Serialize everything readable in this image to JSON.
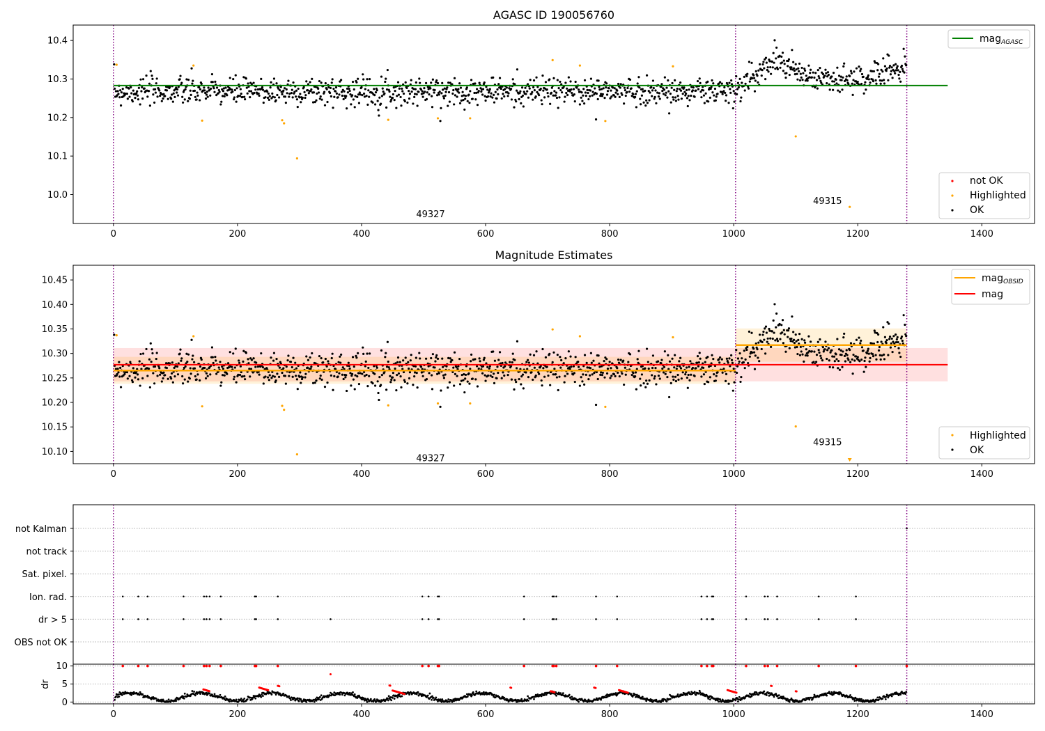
{
  "chart_data": [
    {
      "type": "scatter",
      "panel": "magnitudes",
      "title": "AGASC ID 190056760",
      "xlim": [
        -65,
        1485
      ],
      "ylim": [
        9.925,
        10.44
      ],
      "xticks": [
        0,
        200,
        400,
        600,
        800,
        1000,
        1200,
        1400
      ],
      "xtick_labels": [
        "0",
        "200",
        "400",
        "600",
        "800",
        "1000",
        "1200",
        "1400"
      ],
      "yticks": [
        10.0,
        10.1,
        10.2,
        10.3,
        10.4
      ],
      "ytick_labels": [
        "10.0",
        "10.1",
        "10.2",
        "10.3",
        "10.4"
      ],
      "vlines": [
        0,
        1003,
        1279
      ],
      "obsid_labels": [
        {
          "x": 500,
          "y": 9.95,
          "text": "49327"
        },
        {
          "x": 1140,
          "y": 9.985,
          "text": "49315"
        }
      ],
      "agasc_line": {
        "y": 10.283,
        "x": [
          0,
          1345
        ],
        "label": "mag",
        "label_sub": "AGASC"
      },
      "highlighted": [
        [
          5,
          10.337
        ],
        [
          129,
          10.335
        ],
        [
          143,
          10.192
        ],
        [
          272,
          10.193
        ],
        [
          275,
          10.185
        ],
        [
          296,
          10.094
        ],
        [
          443,
          10.194
        ],
        [
          523,
          10.198
        ],
        [
          575,
          10.198
        ],
        [
          708,
          10.349
        ],
        [
          752,
          10.335
        ],
        [
          793,
          10.191
        ],
        [
          902,
          10.333
        ],
        [
          1100,
          10.151
        ],
        [
          1187,
          9.968
        ]
      ],
      "segments": [
        {
          "x0": 0,
          "x1": 1003,
          "mean": 10.268,
          "std": 0.024,
          "seed": 7
        },
        {
          "x0": 1003,
          "x1": 1279,
          "mean": 10.315,
          "std": 0.032,
          "seed": 11
        }
      ],
      "legend_top": [
        {
          "label": "mag",
          "sub": "AGASC",
          "color": "#008000"
        }
      ],
      "legend_bottom": [
        {
          "label": "not OK",
          "color": "#ff0000"
        },
        {
          "label": "Highlighted",
          "color": "#ffa500"
        },
        {
          "label": "OK",
          "color": "#000000"
        }
      ]
    },
    {
      "type": "scatter",
      "panel": "estimates",
      "title": "Magnitude Estimates",
      "xlim": [
        -65,
        1485
      ],
      "ylim": [
        10.075,
        10.48
      ],
      "xticks": [
        0,
        200,
        400,
        600,
        800,
        1000,
        1200,
        1400
      ],
      "xtick_labels": [
        "0",
        "200",
        "400",
        "600",
        "800",
        "1000",
        "1200",
        "1400"
      ],
      "yticks": [
        10.1,
        10.15,
        10.2,
        10.25,
        10.3,
        10.35,
        10.4,
        10.45
      ],
      "ytick_labels": [
        "10.10",
        "10.15",
        "10.20",
        "10.25",
        "10.30",
        "10.35",
        "10.40",
        "10.45"
      ],
      "vlines": [
        0,
        1003,
        1279
      ],
      "obsid_labels": [
        {
          "x": 500,
          "y": 10.087,
          "text": "49327"
        },
        {
          "x": 1140,
          "y": 10.12,
          "text": "49315"
        }
      ],
      "mag_line": {
        "y": 10.277,
        "band": [
          10.243,
          10.311
        ],
        "x": [
          0,
          1345
        ],
        "label": "mag"
      },
      "obsid_segments": [
        {
          "x0": 0,
          "x1": 1003,
          "y": 10.265,
          "band": [
            10.238,
            10.293
          ]
        },
        {
          "x0": 1003,
          "x1": 1279,
          "y": 10.317,
          "band": [
            10.283,
            10.351
          ]
        }
      ],
      "legend_top": [
        {
          "label": "mag",
          "sub": "OBSID",
          "color": "#ffa500"
        },
        {
          "label": "mag",
          "sub": "",
          "color": "#ff0000"
        }
      ],
      "legend_bottom": [
        {
          "label": "Highlighted",
          "color": "#ffa500"
        },
        {
          "label": "OK",
          "color": "#000000"
        }
      ]
    },
    {
      "type": "scatter",
      "panel": "flags",
      "xlim": [
        -65,
        1485
      ],
      "flag_categories": [
        "not Kalman",
        "not track",
        "Sat. pixel.",
        "Ion. rad.",
        "dr > 5",
        "OBS not OK"
      ],
      "flag_points": {
        "Ion. rad.": [
          15,
          40,
          55,
          113,
          146,
          150,
          155,
          173,
          228,
          230,
          265,
          498,
          508,
          523,
          525,
          662,
          708,
          710,
          714,
          778,
          812,
          948,
          957,
          965,
          967,
          1020,
          1050,
          1055,
          1070,
          1137,
          1197
        ],
        "dr > 5": [
          15,
          40,
          55,
          113,
          146,
          150,
          155,
          173,
          228,
          230,
          265,
          350,
          498,
          508,
          523,
          525,
          662,
          708,
          710,
          714,
          778,
          812,
          948,
          957,
          965,
          967,
          1020,
          1050,
          1055,
          1070,
          1137,
          1197
        ],
        "not Kalman": [
          1279
        ]
      },
      "vlines": [
        0,
        1003,
        1279
      ]
    },
    {
      "type": "scatter",
      "panel": "dr",
      "ylabel": "dr",
      "xlim": [
        -65,
        1485
      ],
      "ylim": [
        -0.5,
        10.5
      ],
      "yticks": [
        0,
        5,
        10
      ],
      "ytick_labels": [
        "0",
        "5",
        "10"
      ],
      "xticks": [
        0,
        200,
        400,
        600,
        800,
        1000,
        1200,
        1400
      ],
      "xtick_labels": [
        "0",
        "200",
        "400",
        "600",
        "800",
        "1000",
        "1200",
        "1400"
      ],
      "red_high": [
        15,
        40,
        55,
        113,
        146,
        150,
        155,
        173,
        228,
        230,
        265,
        498,
        508,
        523,
        525,
        662,
        708,
        710,
        714,
        778,
        812,
        948,
        957,
        965,
        967,
        1020,
        1050,
        1055,
        1070,
        1137,
        1197,
        1279
      ],
      "red_mid": [
        [
          350,
          7.7
        ]
      ],
      "red_clusters": [
        [
          145,
          155,
          3.5
        ],
        [
          235,
          250,
          4.0
        ],
        [
          265,
          268,
          4.5
        ],
        [
          445,
          447,
          4.6
        ],
        [
          450,
          470,
          3.2
        ],
        [
          640,
          642,
          4.0
        ],
        [
          705,
          712,
          3.0
        ],
        [
          775,
          778,
          4.0
        ],
        [
          815,
          830,
          3.3
        ],
        [
          990,
          1005,
          3.3
        ],
        [
          1060,
          1062,
          4.5
        ],
        [
          1100,
          1102,
          3.0
        ]
      ],
      "vlines": [
        0,
        1003,
        1279
      ]
    }
  ]
}
